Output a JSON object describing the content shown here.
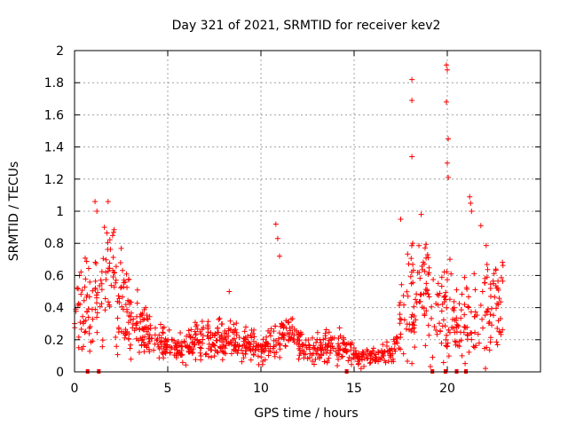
{
  "chart_data": {
    "type": "scatter",
    "title": "Day 321 of 2021, SRMTID for receiver kev2",
    "xlabel": "GPS time / hours",
    "ylabel": "SRMTID / TECUs",
    "xlim": [
      0,
      25
    ],
    "ylim": [
      0,
      2
    ],
    "xticks": [
      0,
      5,
      10,
      15,
      20
    ],
    "yticks": [
      0,
      0.2,
      0.4,
      0.6,
      0.8,
      1,
      1.2,
      1.4,
      1.6,
      1.8,
      2
    ],
    "xtick_labels": [
      "0",
      "5",
      "10",
      "15",
      "20"
    ],
    "ytick_labels": [
      "0",
      "0.2",
      "0.4",
      "0.6",
      "0.8",
      "1",
      "1.2",
      "1.4",
      "1.6",
      "1.8",
      "2"
    ],
    "grid": true,
    "marker": "+",
    "color": "#ff0000",
    "trend": [
      [
        0.0,
        0.42
      ],
      [
        0.5,
        0.4
      ],
      [
        1.0,
        0.44
      ],
      [
        1.5,
        0.48
      ],
      [
        2.0,
        0.55
      ],
      [
        2.5,
        0.42
      ],
      [
        3.0,
        0.33
      ],
      [
        3.5,
        0.28
      ],
      [
        4.0,
        0.22
      ],
      [
        4.5,
        0.2
      ],
      [
        5.0,
        0.17
      ],
      [
        5.5,
        0.14
      ],
      [
        6.0,
        0.15
      ],
      [
        6.5,
        0.2
      ],
      [
        7.0,
        0.2
      ],
      [
        7.5,
        0.18
      ],
      [
        8.0,
        0.22
      ],
      [
        8.5,
        0.21
      ],
      [
        9.0,
        0.18
      ],
      [
        9.5,
        0.16
      ],
      [
        10.0,
        0.14
      ],
      [
        10.5,
        0.18
      ],
      [
        11.0,
        0.22
      ],
      [
        11.5,
        0.22
      ],
      [
        12.0,
        0.2
      ],
      [
        12.5,
        0.15
      ],
      [
        13.0,
        0.14
      ],
      [
        13.5,
        0.16
      ],
      [
        14.0,
        0.17
      ],
      [
        14.5,
        0.15
      ],
      [
        15.0,
        0.1
      ],
      [
        15.5,
        0.09
      ],
      [
        16.0,
        0.1
      ],
      [
        16.5,
        0.11
      ],
      [
        17.0,
        0.11
      ],
      [
        17.3,
        0.18
      ],
      [
        17.7,
        0.45
      ],
      [
        18.0,
        0.55
      ],
      [
        18.5,
        0.52
      ],
      [
        19.0,
        0.45
      ],
      [
        19.5,
        0.35
      ],
      [
        20.0,
        0.38
      ],
      [
        20.5,
        0.33
      ],
      [
        21.0,
        0.32
      ],
      [
        21.5,
        0.38
      ],
      [
        22.0,
        0.42
      ],
      [
        22.5,
        0.4
      ],
      [
        23.0,
        0.38
      ]
    ],
    "notable_points": [
      {
        "x": 1.1,
        "y": 1.06
      },
      {
        "x": 1.2,
        "y": 1.0
      },
      {
        "x": 1.8,
        "y": 1.06
      },
      {
        "x": 1.6,
        "y": 0.9
      },
      {
        "x": 8.3,
        "y": 0.5
      },
      {
        "x": 10.8,
        "y": 0.92
      },
      {
        "x": 10.9,
        "y": 0.83
      },
      {
        "x": 11.0,
        "y": 0.72
      },
      {
        "x": 18.1,
        "y": 1.82
      },
      {
        "x": 18.1,
        "y": 1.69
      },
      {
        "x": 18.1,
        "y": 1.34
      },
      {
        "x": 19.95,
        "y": 1.91
      },
      {
        "x": 20.0,
        "y": 1.88
      },
      {
        "x": 19.95,
        "y": 1.68
      },
      {
        "x": 20.05,
        "y": 1.45
      },
      {
        "x": 20.0,
        "y": 1.3
      },
      {
        "x": 20.05,
        "y": 1.21
      },
      {
        "x": 21.2,
        "y": 1.09
      },
      {
        "x": 21.25,
        "y": 1.05
      },
      {
        "x": 21.3,
        "y": 1.0
      },
      {
        "x": 18.6,
        "y": 0.98
      },
      {
        "x": 17.5,
        "y": 0.95
      },
      {
        "x": 21.8,
        "y": 0.91
      }
    ],
    "zero_markers": [
      0.7,
      1.3,
      14.6,
      19.2,
      19.9,
      20.5,
      21.0
    ]
  }
}
